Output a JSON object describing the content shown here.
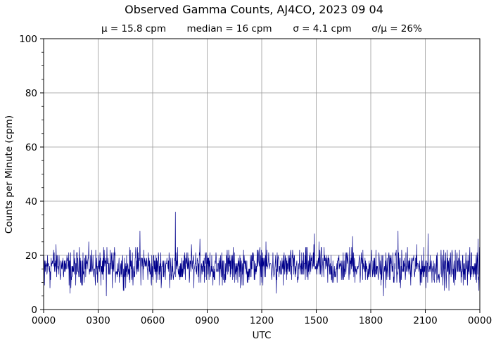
{
  "chart_data": {
    "type": "line",
    "title": "Observed Gamma Counts, AJ4CO, 2023 09 04",
    "subtitle": {
      "mean": "μ = 15.8 cpm",
      "median": "median = 16 cpm",
      "sigma": "σ = 4.1 cpm",
      "ratio": "σ/μ = 26%"
    },
    "xlabel": "UTC",
    "ylabel": "Counts per Minute (cpm)",
    "x_tick_labels": [
      "0000",
      "0300",
      "0600",
      "0900",
      "1200",
      "1500",
      "1800",
      "2100",
      "0000"
    ],
    "x_ticks_hours": [
      0,
      3,
      6,
      9,
      12,
      15,
      18,
      21,
      24
    ],
    "y_tick_labels": [
      "0",
      "20",
      "40",
      "60",
      "80",
      "100"
    ],
    "y_ticks": [
      0,
      20,
      40,
      60,
      80,
      100
    ],
    "xlim_hours": [
      0,
      24
    ],
    "ylim": [
      0,
      100
    ],
    "grid": true,
    "line_color": "#00008b",
    "grid_color": "#999999",
    "series": [
      {
        "x_unit": "UTC hours",
        "x": [
          0,
          0.5,
          1,
          1.5,
          2,
          2.5,
          3,
          3.5,
          4,
          4.5,
          5,
          5.5,
          6,
          6.5,
          7,
          7.5,
          8,
          8.5,
          9,
          9.5,
          10,
          10.5,
          11,
          11.5,
          12,
          12.5,
          13,
          13.5,
          14,
          14.5,
          15,
          15.5,
          16,
          16.5,
          17,
          17.5,
          18,
          18.5,
          19,
          19.5,
          20,
          20.5,
          21,
          21.5,
          22,
          22.5,
          23,
          23.5,
          24
        ],
        "values": [
          15,
          17,
          16,
          15,
          16,
          17,
          15,
          16,
          16,
          15,
          16,
          17,
          15,
          16,
          16,
          15,
          16,
          17,
          16,
          15,
          16,
          16,
          15,
          16,
          17,
          16,
          15,
          16,
          15,
          16,
          17,
          16,
          15,
          16,
          17,
          16,
          16,
          15,
          16,
          15,
          16,
          16,
          15,
          16,
          15,
          16,
          16,
          15,
          16
        ],
        "spikes": [
          [
            0.05,
            9
          ],
          [
            0.35,
            8
          ],
          [
            1.45,
            6
          ],
          [
            3.45,
            5
          ],
          [
            5.3,
            29
          ],
          [
            7.25,
            36
          ],
          [
            8.6,
            26
          ],
          [
            12.8,
            6
          ],
          [
            14.9,
            28
          ],
          [
            17.0,
            27
          ],
          [
            18.7,
            5
          ],
          [
            19.5,
            29
          ],
          [
            20.2,
            9
          ],
          [
            21.15,
            28
          ],
          [
            22.3,
            7
          ],
          [
            23.9,
            26
          ],
          [
            23.95,
            7
          ]
        ]
      }
    ]
  }
}
